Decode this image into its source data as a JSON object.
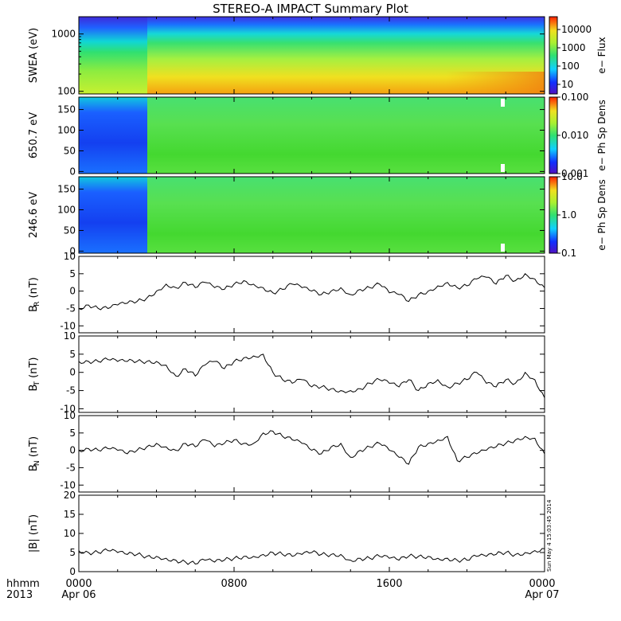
{
  "title": "STEREO-A IMPACT Summary Plot",
  "footer": {
    "time_label": "hhmm",
    "year_label": "2013"
  },
  "x_axis": {
    "ticks": [
      "0000",
      "0800",
      "1600",
      "0000"
    ],
    "dates": [
      "Apr 06",
      "Apr 07"
    ],
    "range_hours": [
      0,
      24
    ]
  },
  "timestamp": "Sun May 4 15:03:45 2014",
  "colors": {
    "line": "#000000",
    "background": "#ffffff"
  },
  "chart_data": [
    {
      "type": "heatmap",
      "ylabel": "SWEA (eV)",
      "y_scale": "log",
      "ylim": [
        90,
        2000
      ],
      "y_ticks": [
        "100",
        "1000"
      ],
      "colorbar": {
        "label": "e− Flux",
        "scale": "log",
        "range": [
          3,
          50000
        ],
        "ticks": [
          "10",
          "100",
          "1000",
          "10000"
        ]
      },
      "description_values": {
        "boundary_hour": 3.5
      }
    },
    {
      "type": "heatmap",
      "ylabel": "650.7 eV",
      "ylim": [
        -5,
        180
      ],
      "y_ticks": [
        "0",
        "50",
        "100",
        "150"
      ],
      "colorbar": {
        "label": "e− Ph Sp Dens",
        "scale": "log",
        "range": [
          0.001,
          0.1
        ],
        "ticks": [
          "0.001",
          "0.010",
          "0.100"
        ]
      }
    },
    {
      "type": "heatmap",
      "ylabel": "246.6 eV",
      "ylim": [
        -5,
        180
      ],
      "y_ticks": [
        "0",
        "50",
        "100",
        "150"
      ],
      "colorbar": {
        "label": "e− Ph Sp Dens",
        "scale": "log",
        "range": [
          0.1,
          10
        ],
        "ticks": [
          "0.1",
          "1.0",
          "10.0"
        ]
      }
    },
    {
      "type": "line",
      "ylabel": "B",
      "ylabel_sub": "R",
      "ylabel_unit": " (nT)",
      "ylim": [
        -12,
        10
      ],
      "y_ticks": [
        "-10",
        "-5",
        "0",
        "5",
        "10"
      ],
      "x": [
        0,
        0.5,
        1,
        1.5,
        2,
        2.5,
        3,
        3.5,
        4,
        4.5,
        5,
        5.5,
        6,
        6.5,
        7,
        7.5,
        8,
        8.5,
        9,
        9.5,
        10,
        10.5,
        11,
        11.5,
        12,
        12.5,
        13,
        13.5,
        14,
        14.5,
        15,
        15.5,
        16,
        16.5,
        17,
        17.5,
        18,
        18.5,
        19,
        19.5,
        20,
        20.5,
        21,
        21.5,
        22,
        22.5,
        23,
        23.5,
        24
      ],
      "values": [
        -5,
        -4,
        -5,
        -5,
        -4,
        -3.5,
        -3,
        -2,
        0,
        2,
        1,
        2.5,
        1,
        2.5,
        1,
        0.5,
        2,
        3,
        2,
        1,
        -0.5,
        0.5,
        2,
        1,
        0,
        -1,
        0,
        1,
        -1,
        0.5,
        1,
        2,
        -0.5,
        -1,
        -3,
        -1,
        0,
        1.5,
        2.5,
        1,
        1.5,
        3.5,
        4,
        2,
        4.5,
        3,
        5,
        3.5,
        1
      ]
    },
    {
      "type": "line",
      "ylabel": "B",
      "ylabel_sub": "T",
      "ylabel_unit": " (nT)",
      "ylim": [
        -11,
        10
      ],
      "y_ticks": [
        "-10",
        "-5",
        "0",
        "5",
        "10"
      ],
      "x": [
        0,
        0.5,
        1,
        1.5,
        2,
        2.5,
        3,
        3.5,
        4,
        4.5,
        5,
        5.5,
        6,
        6.5,
        7,
        7.5,
        8,
        8.5,
        9,
        9.5,
        10,
        10.5,
        11,
        11.5,
        12,
        12.5,
        13,
        13.5,
        14,
        14.5,
        15,
        15.5,
        16,
        16.5,
        17,
        17.5,
        18,
        18.5,
        19,
        19.5,
        20,
        20.5,
        21,
        21.5,
        22,
        22.5,
        23,
        23.5,
        24
      ],
      "values": [
        3,
        3,
        3,
        3.5,
        3,
        3,
        3,
        3,
        3,
        2,
        -1,
        1,
        -1,
        2,
        3,
        1,
        3,
        4,
        4.5,
        5,
        0,
        -2,
        -3,
        -2,
        -4,
        -4,
        -4.5,
        -5,
        -5,
        -4.5,
        -3,
        -2,
        -3,
        -4,
        -2,
        -5,
        -3,
        -2,
        -4,
        -3,
        -2,
        0,
        -3,
        -4,
        -2,
        -3,
        0,
        -2,
        -7
      ]
    },
    {
      "type": "line",
      "ylabel": "B",
      "ylabel_sub": "N",
      "ylabel_unit": " (nT)",
      "ylim": [
        -12,
        10
      ],
      "y_ticks": [
        "-10",
        "-5",
        "0",
        "5",
        "10"
      ],
      "x": [
        0,
        0.5,
        1,
        1.5,
        2,
        2.5,
        3,
        3.5,
        4,
        4.5,
        5,
        5.5,
        6,
        6.5,
        7,
        7.5,
        8,
        8.5,
        9,
        9.5,
        10,
        10.5,
        11,
        11.5,
        12,
        12.5,
        13,
        13.5,
        14,
        14.5,
        15,
        15.5,
        16,
        16.5,
        17,
        17.5,
        18,
        18.5,
        19,
        19.5,
        20,
        20.5,
        21,
        21.5,
        22,
        22.5,
        23,
        23.5,
        24
      ],
      "values": [
        0,
        0.5,
        0,
        0.5,
        0,
        -1,
        0,
        1,
        2,
        1,
        0,
        2,
        1,
        3,
        1,
        2,
        3,
        2,
        2,
        5,
        5.5,
        4,
        3,
        2,
        0,
        -1,
        1,
        2,
        -2,
        0,
        1,
        2,
        0,
        -2,
        -4,
        1,
        2,
        3,
        4,
        -3,
        -2,
        -1,
        0,
        1,
        2,
        3,
        4,
        3.5,
        -1
      ]
    },
    {
      "type": "line",
      "ylabel": "|B|",
      "ylabel_unit": " (nT)",
      "ylim": [
        0,
        20
      ],
      "y_ticks": [
        "0",
        "5",
        "10",
        "15",
        "20"
      ],
      "x": [
        0,
        0.5,
        1,
        1.5,
        2,
        2.5,
        3,
        3.5,
        4,
        4.5,
        5,
        5.5,
        6,
        6.5,
        7,
        7.5,
        8,
        8.5,
        9,
        9.5,
        10,
        10.5,
        11,
        11.5,
        12,
        12.5,
        13,
        13.5,
        14,
        14.5,
        15,
        15.5,
        16,
        16.5,
        17,
        17.5,
        18,
        18.5,
        19,
        19.5,
        20,
        20.5,
        21,
        21.5,
        22,
        22.5,
        23,
        23.5,
        24
      ],
      "values": [
        5.5,
        5,
        5,
        5.5,
        5,
        4.5,
        4.5,
        4,
        4,
        3.5,
        3,
        2.5,
        2,
        3,
        2.5,
        3,
        3.5,
        4,
        4,
        4.5,
        5,
        4.5,
        4,
        4.5,
        5,
        4.5,
        4.5,
        4.5,
        3,
        3.5,
        3.5,
        4,
        3.5,
        3,
        4,
        4,
        4,
        3.5,
        3.5,
        3,
        3,
        4,
        4,
        4.5,
        5,
        4.5,
        5,
        5.5,
        6
      ]
    }
  ]
}
